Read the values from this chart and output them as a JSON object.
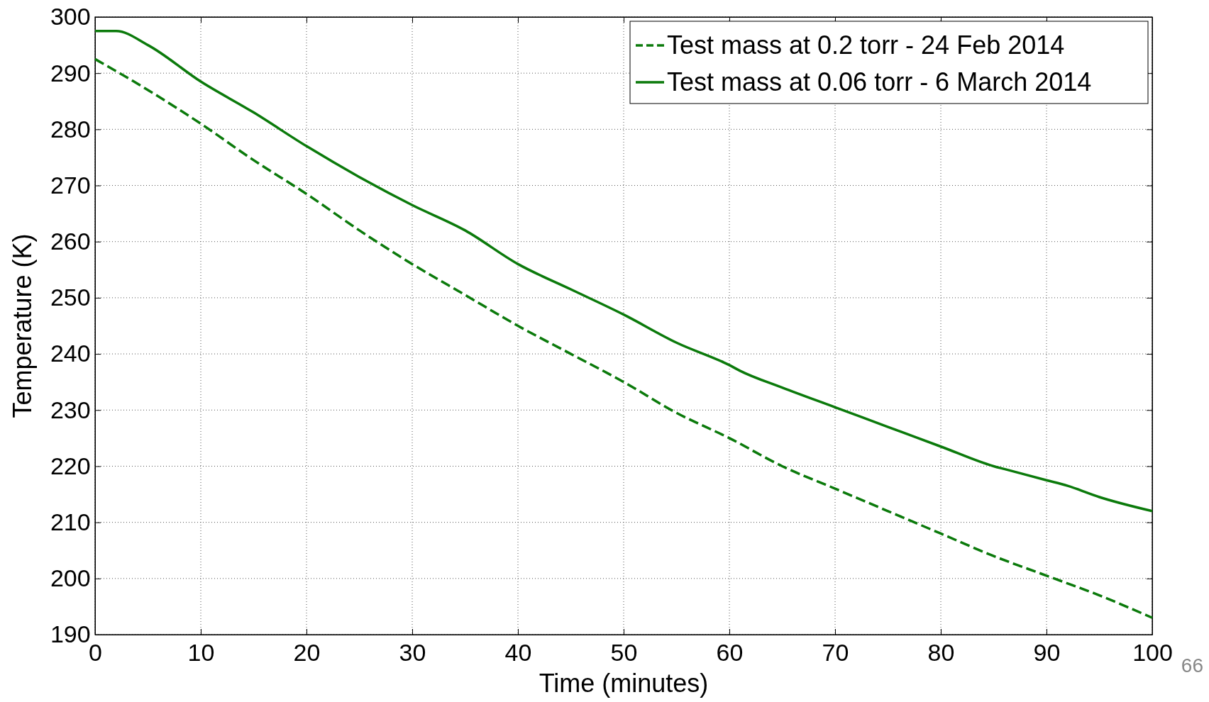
{
  "chart_data": {
    "type": "line",
    "xlabel": "Time (minutes)",
    "ylabel": "Temperature (K)",
    "xlim": [
      0,
      100
    ],
    "xticks": [
      0,
      10,
      20,
      30,
      40,
      50,
      60,
      70,
      80,
      90,
      100
    ],
    "ylim": [
      190,
      300
    ],
    "yticks": [
      190,
      200,
      210,
      220,
      230,
      240,
      250,
      260,
      270,
      280,
      290,
      300
    ],
    "grid": true,
    "legend": "top right",
    "annotations": [
      "66"
    ],
    "series": [
      {
        "name": "Test mass at 0.2 torr - 24 Feb 2014",
        "color": "#0b7a0b",
        "line_style": "dashed",
        "x": [
          0,
          5,
          10,
          15,
          20,
          25,
          30,
          35,
          40,
          45,
          50,
          55,
          60,
          65,
          70,
          75,
          80,
          85,
          90,
          95,
          100
        ],
        "values": [
          292.5,
          287,
          281,
          274.5,
          268.5,
          262,
          256,
          250.5,
          245,
          240,
          235,
          229.5,
          225,
          220,
          216,
          212,
          208,
          204,
          200.5,
          197,
          193
        ]
      },
      {
        "name": "Test mass at 0.06 torr - 6 March 2014",
        "color": "#0b7a0b",
        "line_style": "solid",
        "x": [
          0,
          2,
          5,
          10,
          15,
          20,
          25,
          30,
          35,
          40,
          45,
          50,
          55,
          60,
          61,
          65,
          70,
          75,
          80,
          85,
          86,
          90,
          92,
          95,
          100
        ],
        "values": [
          297.5,
          297.5,
          295,
          288.5,
          283,
          277,
          271.5,
          266.5,
          262,
          256,
          251.5,
          247,
          242,
          238,
          237,
          234,
          230.5,
          227,
          223.5,
          220,
          219.5,
          217.5,
          216.5,
          214.5,
          212
        ]
      }
    ]
  }
}
